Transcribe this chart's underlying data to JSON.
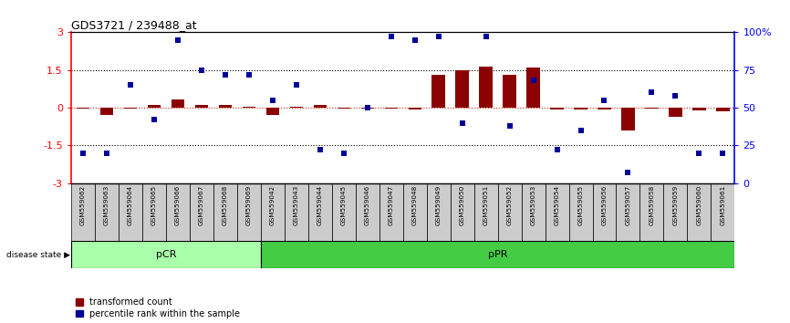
{
  "title": "GDS3721 / 239488_at",
  "samples": [
    "GSM559062",
    "GSM559063",
    "GSM559064",
    "GSM559065",
    "GSM559066",
    "GSM559067",
    "GSM559068",
    "GSM559069",
    "GSM559042",
    "GSM559043",
    "GSM559044",
    "GSM559045",
    "GSM559046",
    "GSM559047",
    "GSM559048",
    "GSM559049",
    "GSM559050",
    "GSM559051",
    "GSM559052",
    "GSM559053",
    "GSM559054",
    "GSM559055",
    "GSM559056",
    "GSM559057",
    "GSM559058",
    "GSM559059",
    "GSM559060",
    "GSM559061"
  ],
  "transformed_count": [
    -0.05,
    -0.3,
    -0.05,
    0.1,
    0.32,
    0.12,
    0.1,
    0.05,
    -0.3,
    0.02,
    0.1,
    -0.04,
    -0.05,
    -0.05,
    -0.07,
    1.3,
    1.5,
    1.62,
    1.3,
    1.6,
    -0.07,
    -0.08,
    -0.08,
    -0.9,
    -0.05,
    -0.38,
    -0.1,
    -0.15
  ],
  "percentile_rank": [
    20,
    20,
    65,
    42,
    95,
    75,
    72,
    72,
    55,
    65,
    22,
    20,
    50,
    97,
    95,
    97,
    40,
    97,
    38,
    68,
    22,
    35,
    55,
    7,
    60,
    58,
    20,
    20
  ],
  "pCR_count": 8,
  "pCR_color": "#aaffaa",
  "pPR_color": "#44cc44",
  "bar_color": "#8b0000",
  "dot_color": "#000099",
  "zero_line_color": "#cc2200",
  "dotted_line_color": "black",
  "ylim_left": [
    -3.0,
    3.0
  ],
  "yticks_left": [
    -3.0,
    -1.5,
    0.0,
    1.5,
    3.0
  ],
  "ytick_labels_left": [
    "-3",
    "-1.5",
    "0",
    "1.5",
    "3"
  ],
  "yticks_right": [
    0,
    25,
    50,
    75,
    100
  ],
  "ytick_labels_right": [
    "0",
    "25",
    "50",
    "75",
    "100%"
  ],
  "pCR_label": "pCR",
  "pPR_label": "pPR",
  "disease_state_label": "disease state",
  "legend_bar_label": "transformed count",
  "legend_dot_label": "percentile rank within the sample"
}
